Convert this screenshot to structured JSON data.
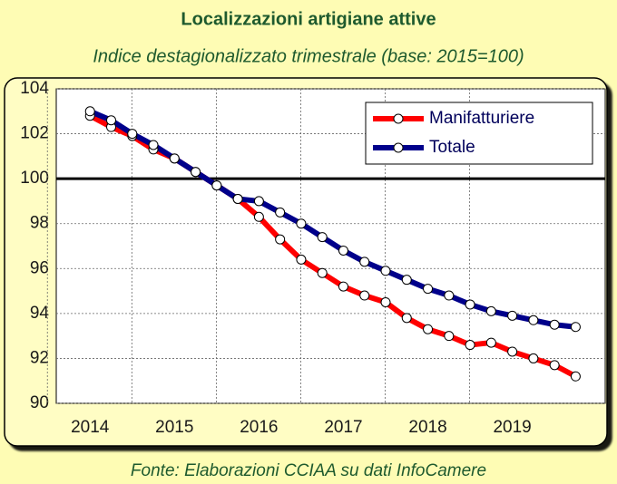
{
  "chart_data": {
    "type": "line",
    "title": "Localizzazioni artigiane attive",
    "subtitle": "Indice destagionalizzato trimestrale (base: 2015=100)",
    "source": "Fonte: Elaborazioni CCIAA su dati InfoCamere",
    "x": [
      2014,
      2014.25,
      2014.5,
      2014.75,
      2015,
      2015.25,
      2015.5,
      2015.75,
      2016,
      2016.25,
      2016.5,
      2016.75,
      2017,
      2017.25,
      2017.5,
      2017.75,
      2018,
      2018.25,
      2018.5,
      2018.75,
      2019,
      2019.25,
      2019.5,
      2019.75
    ],
    "series": [
      {
        "name": "Manifatturiere",
        "color": "#ff0000",
        "values": [
          102.8,
          102.3,
          101.9,
          101.3,
          100.9,
          100.3,
          99.7,
          99.1,
          98.3,
          97.3,
          96.4,
          95.8,
          95.2,
          94.8,
          94.5,
          93.8,
          93.3,
          93.0,
          92.6,
          92.7,
          92.3,
          92.0,
          91.7,
          91.2
        ]
      },
      {
        "name": "Totale",
        "color": "#00008b",
        "values": [
          103.0,
          102.6,
          102.0,
          101.5,
          100.9,
          100.3,
          99.7,
          99.1,
          99.0,
          98.5,
          98.0,
          97.4,
          96.8,
          96.3,
          95.9,
          95.5,
          95.1,
          94.8,
          94.4,
          94.1,
          93.9,
          93.7,
          93.5,
          93.4
        ]
      }
    ],
    "xlim": [
      2013.6,
      2020.1
    ],
    "xticks": [
      2014,
      2015,
      2016,
      2017,
      2018,
      2019
    ],
    "ylim": [
      90,
      104
    ],
    "yticks": [
      90,
      92,
      94,
      96,
      98,
      100,
      102,
      104
    ],
    "reference_line": 100,
    "grid": true,
    "legend": "top-right"
  }
}
